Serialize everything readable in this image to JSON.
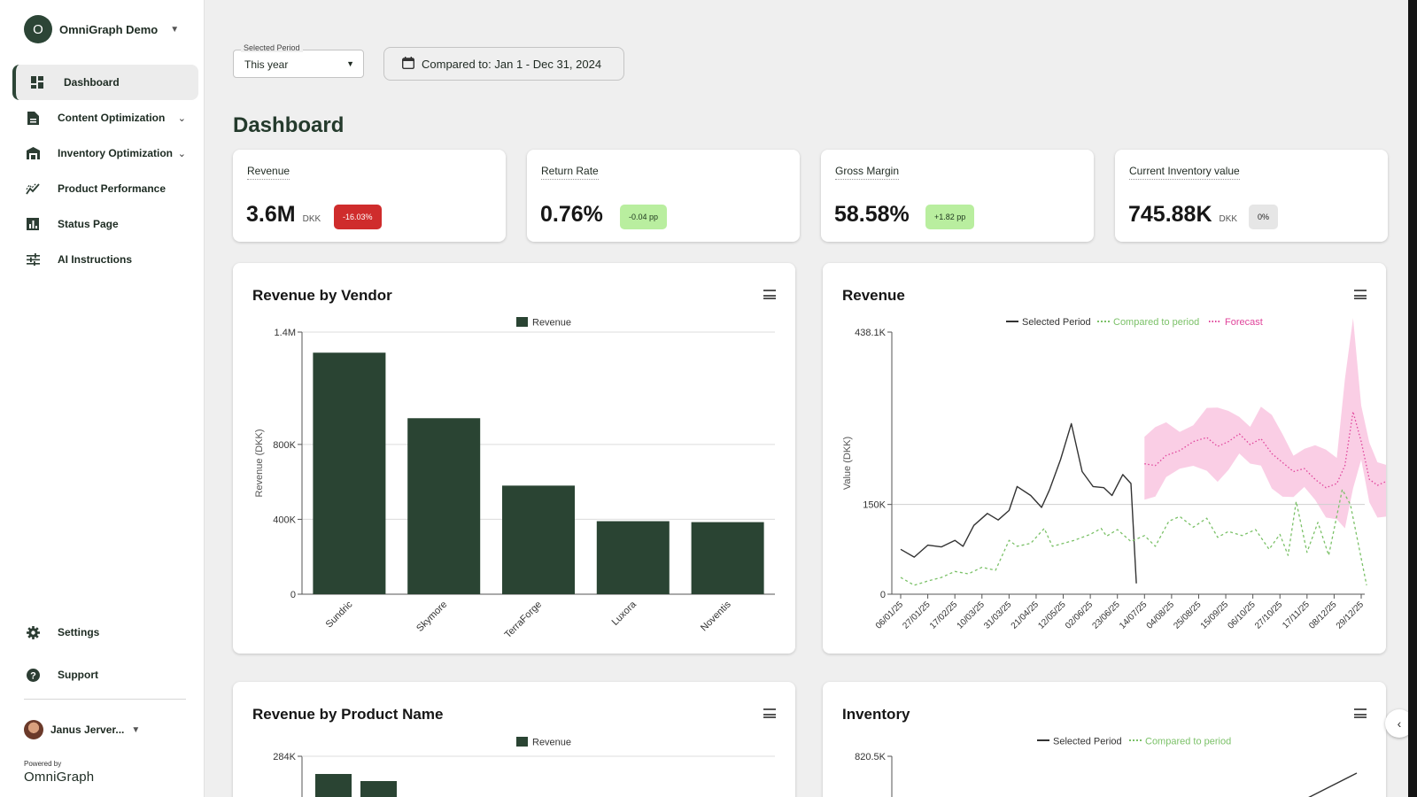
{
  "sidebar": {
    "org_initial": "O",
    "org_name": "OmniGraph Demo",
    "items": [
      {
        "label": "Dashboard",
        "icon": "dashboard-icon"
      },
      {
        "label": "Content Optimization",
        "icon": "document-icon"
      },
      {
        "label": "Inventory Optimization",
        "icon": "warehouse-icon"
      },
      {
        "label": "Product Performance",
        "icon": "trend-icon"
      },
      {
        "label": "Status Page",
        "icon": "bar-chart-icon"
      },
      {
        "label": "AI Instructions",
        "icon": "sliders-icon"
      }
    ],
    "settings_label": "Settings",
    "support_label": "Support",
    "user_name": "Janus Jerver...",
    "powered_by": "Powered by",
    "brand": "OmniGraph"
  },
  "header": {
    "period_legend": "Selected Period",
    "period_value": "This year",
    "compare_label": "Compared to: Jan 1 - Dec 31, 2024"
  },
  "page_title": "Dashboard",
  "kpis": [
    {
      "label": "Revenue",
      "value": "3.6M",
      "unit": "DKK",
      "badge": "-16.03%",
      "tone": "red"
    },
    {
      "label": "Return Rate",
      "value": "0.76%",
      "unit": "",
      "badge": "-0.04 pp",
      "tone": "green"
    },
    {
      "label": "Gross Margin",
      "value": "58.58%",
      "unit": "",
      "badge": "+1.82 pp",
      "tone": "green"
    },
    {
      "label": "Current Inventory value",
      "value": "745.88K",
      "unit": "DKK",
      "badge": "0%",
      "tone": "grey"
    }
  ],
  "colors": {
    "bar": "#2a4433",
    "selected_line": "#333333",
    "compared_line": "#7bc168",
    "forecast_line": "#e0449b",
    "forecast_band": "#f9c6e0"
  },
  "chart_data": [
    {
      "type": "bar",
      "title": "Revenue by Vendor",
      "legend": [
        "Revenue"
      ],
      "ylabel": "Revenue (DKK)",
      "categories": [
        "Sundric",
        "Skymore",
        "TerraForge",
        "Luxora",
        "Noventis"
      ],
      "values": [
        1290000,
        940000,
        580000,
        390000,
        385000
      ],
      "yticks": [
        {
          "v": 0,
          "label": "0"
        },
        {
          "v": 400000,
          "label": "400K"
        },
        {
          "v": 800000,
          "label": "800K"
        },
        {
          "v": 1400000,
          "label": "1.4M"
        }
      ],
      "ylim": [
        0,
        1400000
      ]
    },
    {
      "type": "line",
      "title": "Revenue",
      "ylabel": "Value (DKK)",
      "legend": [
        "Selected Period",
        "Compared to period",
        "Forecast"
      ],
      "x_labels": [
        "06/01/25",
        "27/01/25",
        "17/02/25",
        "10/03/25",
        "31/03/25",
        "21/04/25",
        "12/05/25",
        "02/06/25",
        "23/06/25",
        "14/07/25",
        "04/08/25",
        "25/08/25",
        "15/09/25",
        "06/10/25",
        "27/10/25",
        "17/11/25",
        "08/12/25",
        "29/12/25"
      ],
      "yticks": [
        {
          "v": 0,
          "label": "0"
        },
        {
          "v": 150000,
          "label": "150K"
        },
        {
          "v": 438100,
          "label": "438.1K"
        }
      ],
      "ylim": [
        0,
        438100
      ],
      "series": [
        {
          "name": "Selected Period",
          "style": "solid",
          "points": [
            [
              0,
              75000
            ],
            [
              0.5,
              62000
            ],
            [
              1,
              82000
            ],
            [
              1.5,
              79000
            ],
            [
              2,
              90000
            ],
            [
              2.3,
              80000
            ],
            [
              2.7,
              115000
            ],
            [
              3.2,
              135000
            ],
            [
              3.6,
              124000
            ],
            [
              4,
              140000
            ],
            [
              4.3,
              180000
            ],
            [
              4.8,
              165000
            ],
            [
              5.2,
              145000
            ],
            [
              5.5,
              175000
            ],
            [
              5.9,
              225000
            ],
            [
              6.3,
              285000
            ],
            [
              6.7,
              205000
            ],
            [
              7.1,
              180000
            ],
            [
              7.5,
              178000
            ],
            [
              7.8,
              165000
            ],
            [
              8.2,
              200000
            ],
            [
              8.5,
              185000
            ],
            [
              8.7,
              18000
            ]
          ]
        },
        {
          "name": "Compared to period",
          "style": "dashed",
          "points": [
            [
              0,
              28000
            ],
            [
              0.5,
              15000
            ],
            [
              1,
              22000
            ],
            [
              1.5,
              28000
            ],
            [
              2,
              38000
            ],
            [
              2.5,
              34000
            ],
            [
              3,
              45000
            ],
            [
              3.5,
              40000
            ],
            [
              4,
              90000
            ],
            [
              4.3,
              80000
            ],
            [
              4.8,
              85000
            ],
            [
              5.3,
              110000
            ],
            [
              5.6,
              80000
            ],
            [
              6,
              85000
            ],
            [
              6.4,
              90000
            ],
            [
              7,
              100000
            ],
            [
              7.4,
              110000
            ],
            [
              7.6,
              97000
            ],
            [
              8,
              108000
            ],
            [
              8.5,
              88000
            ],
            [
              9,
              98000
            ],
            [
              9.4,
              80000
            ],
            [
              9.9,
              122000
            ],
            [
              10.3,
              130000
            ],
            [
              10.8,
              112000
            ],
            [
              11.3,
              127000
            ],
            [
              11.7,
              95000
            ],
            [
              12.1,
              105000
            ],
            [
              12.6,
              98000
            ],
            [
              13.1,
              108000
            ],
            [
              13.6,
              75000
            ],
            [
              14,
              100000
            ],
            [
              14.3,
              65000
            ],
            [
              14.6,
              155000
            ],
            [
              15,
              70000
            ],
            [
              15.4,
              120000
            ],
            [
              15.8,
              65000
            ],
            [
              16.3,
              175000
            ],
            [
              16.6,
              150000
            ],
            [
              17,
              60000
            ],
            [
              17.2,
              15000
            ]
          ]
        },
        {
          "name": "Forecast",
          "style": "dotted",
          "points": [
            [
              9,
              218000
            ],
            [
              9.4,
              215000
            ],
            [
              9.8,
              232000
            ],
            [
              10.3,
              240000
            ],
            [
              10.8,
              255000
            ],
            [
              11.3,
              262000
            ],
            [
              11.7,
              247000
            ],
            [
              12.1,
              255000
            ],
            [
              12.5,
              268000
            ],
            [
              12.9,
              250000
            ],
            [
              13.3,
              260000
            ],
            [
              13.7,
              235000
            ],
            [
              14.1,
              220000
            ],
            [
              14.5,
              205000
            ],
            [
              14.9,
              210000
            ],
            [
              15.3,
              192000
            ],
            [
              15.7,
              178000
            ],
            [
              16.1,
              185000
            ],
            [
              16.4,
              215000
            ],
            [
              16.7,
              305000
            ],
            [
              17,
              255000
            ],
            [
              17.3,
              192000
            ],
            [
              17.6,
              182000
            ],
            [
              18,
              190000
            ]
          ]
        }
      ]
    },
    {
      "type": "bar",
      "title": "Revenue by Product Name",
      "legend": [
        "Revenue"
      ],
      "yticks": [
        {
          "v": 284000,
          "label": "284K"
        }
      ],
      "ylim": [
        0,
        284000
      ]
    },
    {
      "type": "line",
      "title": "Inventory",
      "legend": [
        "Selected Period",
        "Compared to period"
      ],
      "yticks": [
        {
          "v": 820500,
          "label": "820.5K"
        }
      ],
      "ylim": [
        0,
        820500
      ]
    }
  ]
}
